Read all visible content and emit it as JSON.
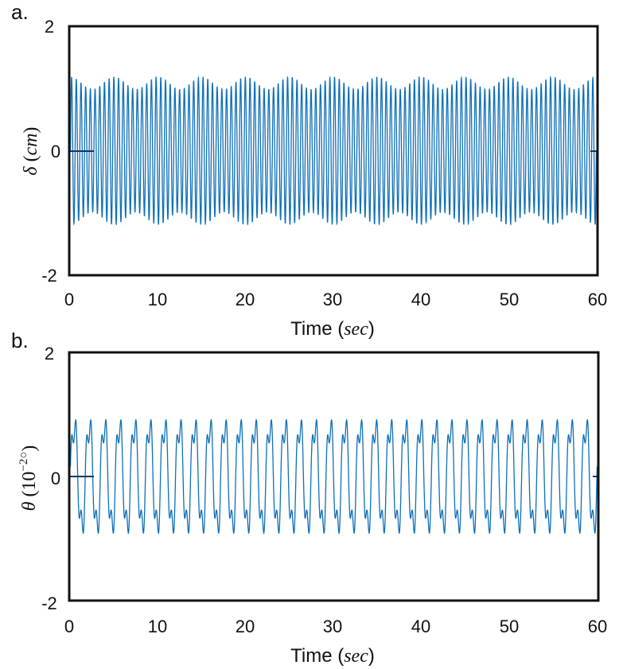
{
  "chart_data": [
    {
      "panel_label": "a.",
      "type": "line",
      "xlabel_prefix": "Time (",
      "xlabel_unit": "sec",
      "xlabel_suffix": ")",
      "ylabel_symbol": "δ",
      "ylabel_unit_open": " (",
      "ylabel_unit": "cm",
      "ylabel_unit_close": ")",
      "xlim": [
        0,
        60
      ],
      "ylim": [
        -2,
        2
      ],
      "xticks": [
        "0",
        "10",
        "20",
        "30",
        "40",
        "50",
        "60"
      ],
      "yticks": [
        "2",
        "0",
        "-2"
      ],
      "grid": false,
      "series": [
        {
          "color": "#0e6fb9",
          "description_of_signal": "dense oscillation",
          "peak_amplitude": 1.2,
          "envelope_min": 1.0,
          "cycles_over_60s": 112,
          "beat_cycles_over_60s": 12
        }
      ]
    },
    {
      "panel_label": "b.",
      "type": "line",
      "xlabel_prefix": "Time (",
      "xlabel_unit": "sec",
      "xlabel_suffix": ")",
      "ylabel_symbol": "θ",
      "ylabel_unit_open": " (10",
      "ylabel_exponent": "−2○",
      "ylabel_unit_close": ")",
      "xlim": [
        0,
        60
      ],
      "ylim": [
        -2,
        2
      ],
      "xticks": [
        "0",
        "10",
        "20",
        "30",
        "40",
        "50",
        "60"
      ],
      "yticks": [
        "2",
        "0",
        "-2"
      ],
      "grid": false,
      "series": [
        {
          "color": "#0e6fb9",
          "peak_amplitude": 1.1,
          "slow_cycles_over_60s": 35,
          "fast_cycles_over_60s": 105
        }
      ]
    }
  ]
}
